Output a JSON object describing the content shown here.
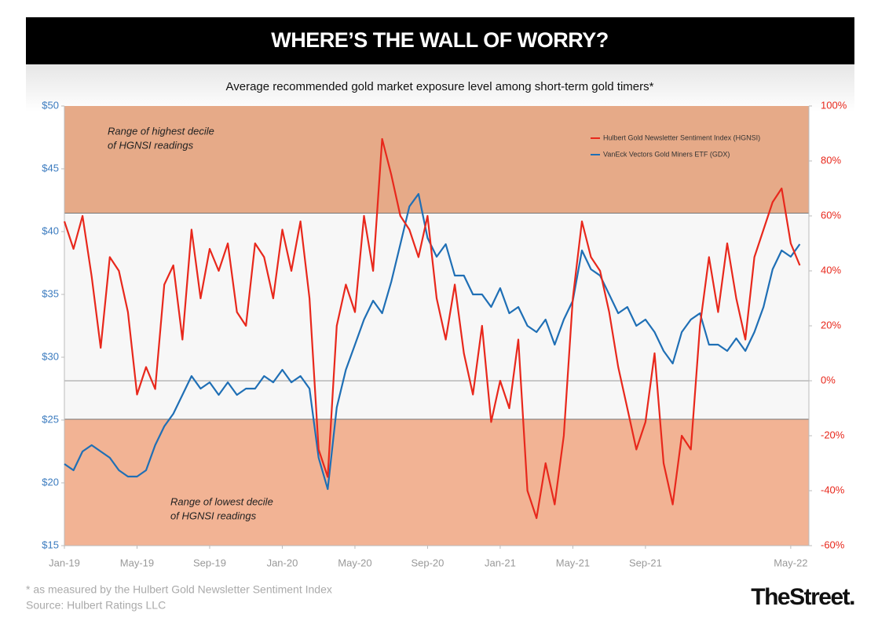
{
  "chart_data": {
    "type": "line",
    "title": "WHERE’S THE WALL OF WORRY?",
    "subtitle": "Average recommended gold market exposure level among short-term gold timers*",
    "footnote": "* as measured by the Hulbert Gold Newsletter Sentiment Index",
    "source": "Source: Hulbert Ratings LLC",
    "brand": "TheStreet.",
    "xlim": [
      0,
      41
    ],
    "xticks": [
      {
        "value": 0,
        "label": "Jan-19"
      },
      {
        "value": 4,
        "label": "May-19"
      },
      {
        "value": 8,
        "label": "Sep-19"
      },
      {
        "value": 12,
        "label": "Jan-20"
      },
      {
        "value": 16,
        "label": "May-20"
      },
      {
        "value": 20,
        "label": "Sep-20"
      },
      {
        "value": 24,
        "label": "Jan-21"
      },
      {
        "value": 28,
        "label": "May-21"
      },
      {
        "value": 32,
        "label": "Sep-21"
      },
      {
        "value": 40,
        "label": "May-22"
      }
    ],
    "ylim": [
      15,
      50
    ],
    "yticks": [
      {
        "value": 15,
        "label": "$15"
      },
      {
        "value": 20,
        "label": "$20"
      },
      {
        "value": 25,
        "label": "$25"
      },
      {
        "value": 30,
        "label": "$30"
      },
      {
        "value": 35,
        "label": "$35"
      },
      {
        "value": 40,
        "label": "$40"
      },
      {
        "value": 45,
        "label": "$45"
      },
      {
        "value": 50,
        "label": "$50"
      }
    ],
    "y2lim": [
      -60,
      100
    ],
    "y2ticks": [
      {
        "value": -60,
        "label": "-60%"
      },
      {
        "value": -40,
        "label": "-40%"
      },
      {
        "value": -20,
        "label": "-20%"
      },
      {
        "value": 0,
        "label": "0%"
      },
      {
        "value": 20,
        "label": "20%"
      },
      {
        "value": 40,
        "label": "40%"
      },
      {
        "value": 60,
        "label": "60%"
      },
      {
        "value": 80,
        "label": "80%"
      },
      {
        "value": 100,
        "label": "100%"
      }
    ],
    "bands": [
      {
        "lines": [
          "Range of highest decile",
          "of HGNSI readings"
        ],
        "from": 61,
        "to": 100,
        "color": "#e6aa88"
      },
      {
        "lines": [
          "Range of lowest decile",
          "of HGNSI readings"
        ],
        "from": -60,
        "to": -14,
        "color": "#f2b394"
      }
    ],
    "legend": "upper right",
    "x": [
      0,
      0.5,
      1,
      1.5,
      2,
      2.5,
      3,
      3.5,
      4,
      4.5,
      5,
      5.5,
      6,
      6.5,
      7,
      7.5,
      8,
      8.5,
      9,
      9.5,
      10,
      10.5,
      11,
      11.5,
      12,
      12.5,
      13,
      13.5,
      14,
      14.5,
      15,
      15.5,
      16,
      16.5,
      17,
      17.5,
      18,
      18.5,
      19,
      19.5,
      20,
      20.5,
      21,
      21.5,
      22,
      22.5,
      23,
      23.5,
      24,
      24.5,
      25,
      25.5,
      26,
      26.5,
      27,
      27.5,
      28,
      28.5,
      29,
      29.5,
      30,
      30.5,
      31,
      31.5,
      32,
      32.5,
      33,
      33.5,
      34,
      34.5,
      35,
      35.5,
      36,
      36.5,
      37,
      37.5,
      38,
      38.5,
      39,
      39.5,
      40,
      40.5
    ],
    "series": [
      {
        "name": "Hulbert Gold Newsletter Sentiment Index (HGNSI)",
        "color": "#e8281c",
        "axis": "y2",
        "values": [
          58,
          48,
          60,
          38,
          12,
          45,
          40,
          25,
          -5,
          5,
          -3,
          35,
          42,
          15,
          55,
          30,
          48,
          40,
          50,
          25,
          20,
          50,
          45,
          30,
          55,
          40,
          58,
          30,
          -25,
          -35,
          20,
          35,
          25,
          60,
          40,
          88,
          75,
          60,
          55,
          45,
          60,
          30,
          15,
          35,
          10,
          -5,
          20,
          -15,
          0,
          -10,
          15,
          -40,
          -50,
          -30,
          -45,
          -20,
          30,
          58,
          45,
          40,
          25,
          5,
          -10,
          -25,
          -15,
          10,
          -30,
          -45,
          -20,
          -25,
          20,
          45,
          25,
          50,
          30,
          15,
          45,
          55,
          65,
          70,
          50,
          42
        ]
      },
      {
        "name": "VanEck Vectors Gold Miners ETF (GDX)",
        "color": "#1f6fb5",
        "axis": "y",
        "values": [
          21.5,
          21,
          22.5,
          23,
          22.5,
          22,
          21,
          20.5,
          20.5,
          21,
          23,
          24.5,
          25.5,
          27,
          28.5,
          27.5,
          28,
          27,
          28,
          27,
          27.5,
          27.5,
          28.5,
          28,
          29,
          28,
          28.5,
          27.5,
          22,
          19.5,
          26,
          29,
          31,
          33,
          34.5,
          33.5,
          36,
          39,
          42,
          43,
          39.5,
          38,
          39,
          36.5,
          36.5,
          35,
          35,
          34,
          35.5,
          33.5,
          34,
          32.5,
          32,
          33,
          31,
          33,
          34.5,
          38.5,
          37,
          36.5,
          35,
          33.5,
          34,
          32.5,
          33,
          32,
          30.5,
          29.5,
          32,
          33,
          33.5,
          31,
          31,
          30.5,
          31.5,
          30.5,
          32,
          34,
          37,
          38.5,
          38,
          39
        ]
      }
    ]
  }
}
